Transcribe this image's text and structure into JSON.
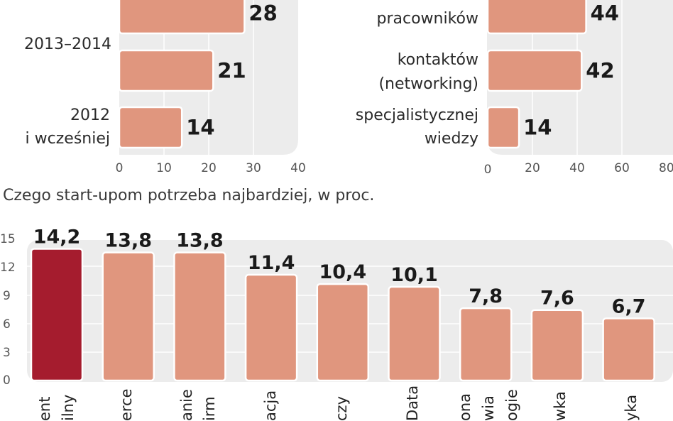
{
  "colors": {
    "bar": "#e0967e",
    "bar_highlight": "#a51c2e",
    "panel_bg": "#ececec",
    "bar_stroke": "#ffffff"
  },
  "chart_data": [
    {
      "type": "bar",
      "orientation": "horizontal",
      "categories": [
        "",
        "2013–2014",
        "2012\ni wcześniej"
      ],
      "values": [
        28,
        21,
        14
      ],
      "value_labels": [
        "28",
        "21",
        "14"
      ],
      "xticks": [
        "0",
        "10",
        "20",
        "30",
        "40"
      ],
      "xlim": [
        0,
        40
      ]
    },
    {
      "type": "bar",
      "orientation": "horizontal",
      "categories": [
        "pracowników",
        "kontaktów\n(networking)",
        "specjalistycznej\nwiedzy"
      ],
      "values": [
        44,
        42,
        14
      ],
      "value_labels": [
        "44",
        "42",
        "14"
      ],
      "xticks": [
        "0",
        "20",
        "40",
        "60",
        "80"
      ],
      "xlim": [
        0,
        80
      ]
    },
    {
      "type": "bar",
      "orientation": "vertical",
      "title": "Czego start-upom potrzeba najbardziej, w proc.",
      "categories": [
        "ent\nilny",
        "erce",
        "anie\nirm",
        "acja",
        "czy",
        "Data",
        "ona\nwia\nogie",
        "wka",
        "yka"
      ],
      "values": [
        14.2,
        13.8,
        13.8,
        11.4,
        10.4,
        10.1,
        7.8,
        7.6,
        6.7
      ],
      "value_labels": [
        "14,2",
        "13,8",
        "13,8",
        "11,4",
        "10,4",
        "10,1",
        "7,8",
        "7,6",
        "6,7"
      ],
      "highlight_index": 0,
      "yticks": [
        "0",
        "3",
        "6",
        "9",
        "12",
        "15"
      ],
      "ylim": [
        0,
        15
      ]
    }
  ]
}
